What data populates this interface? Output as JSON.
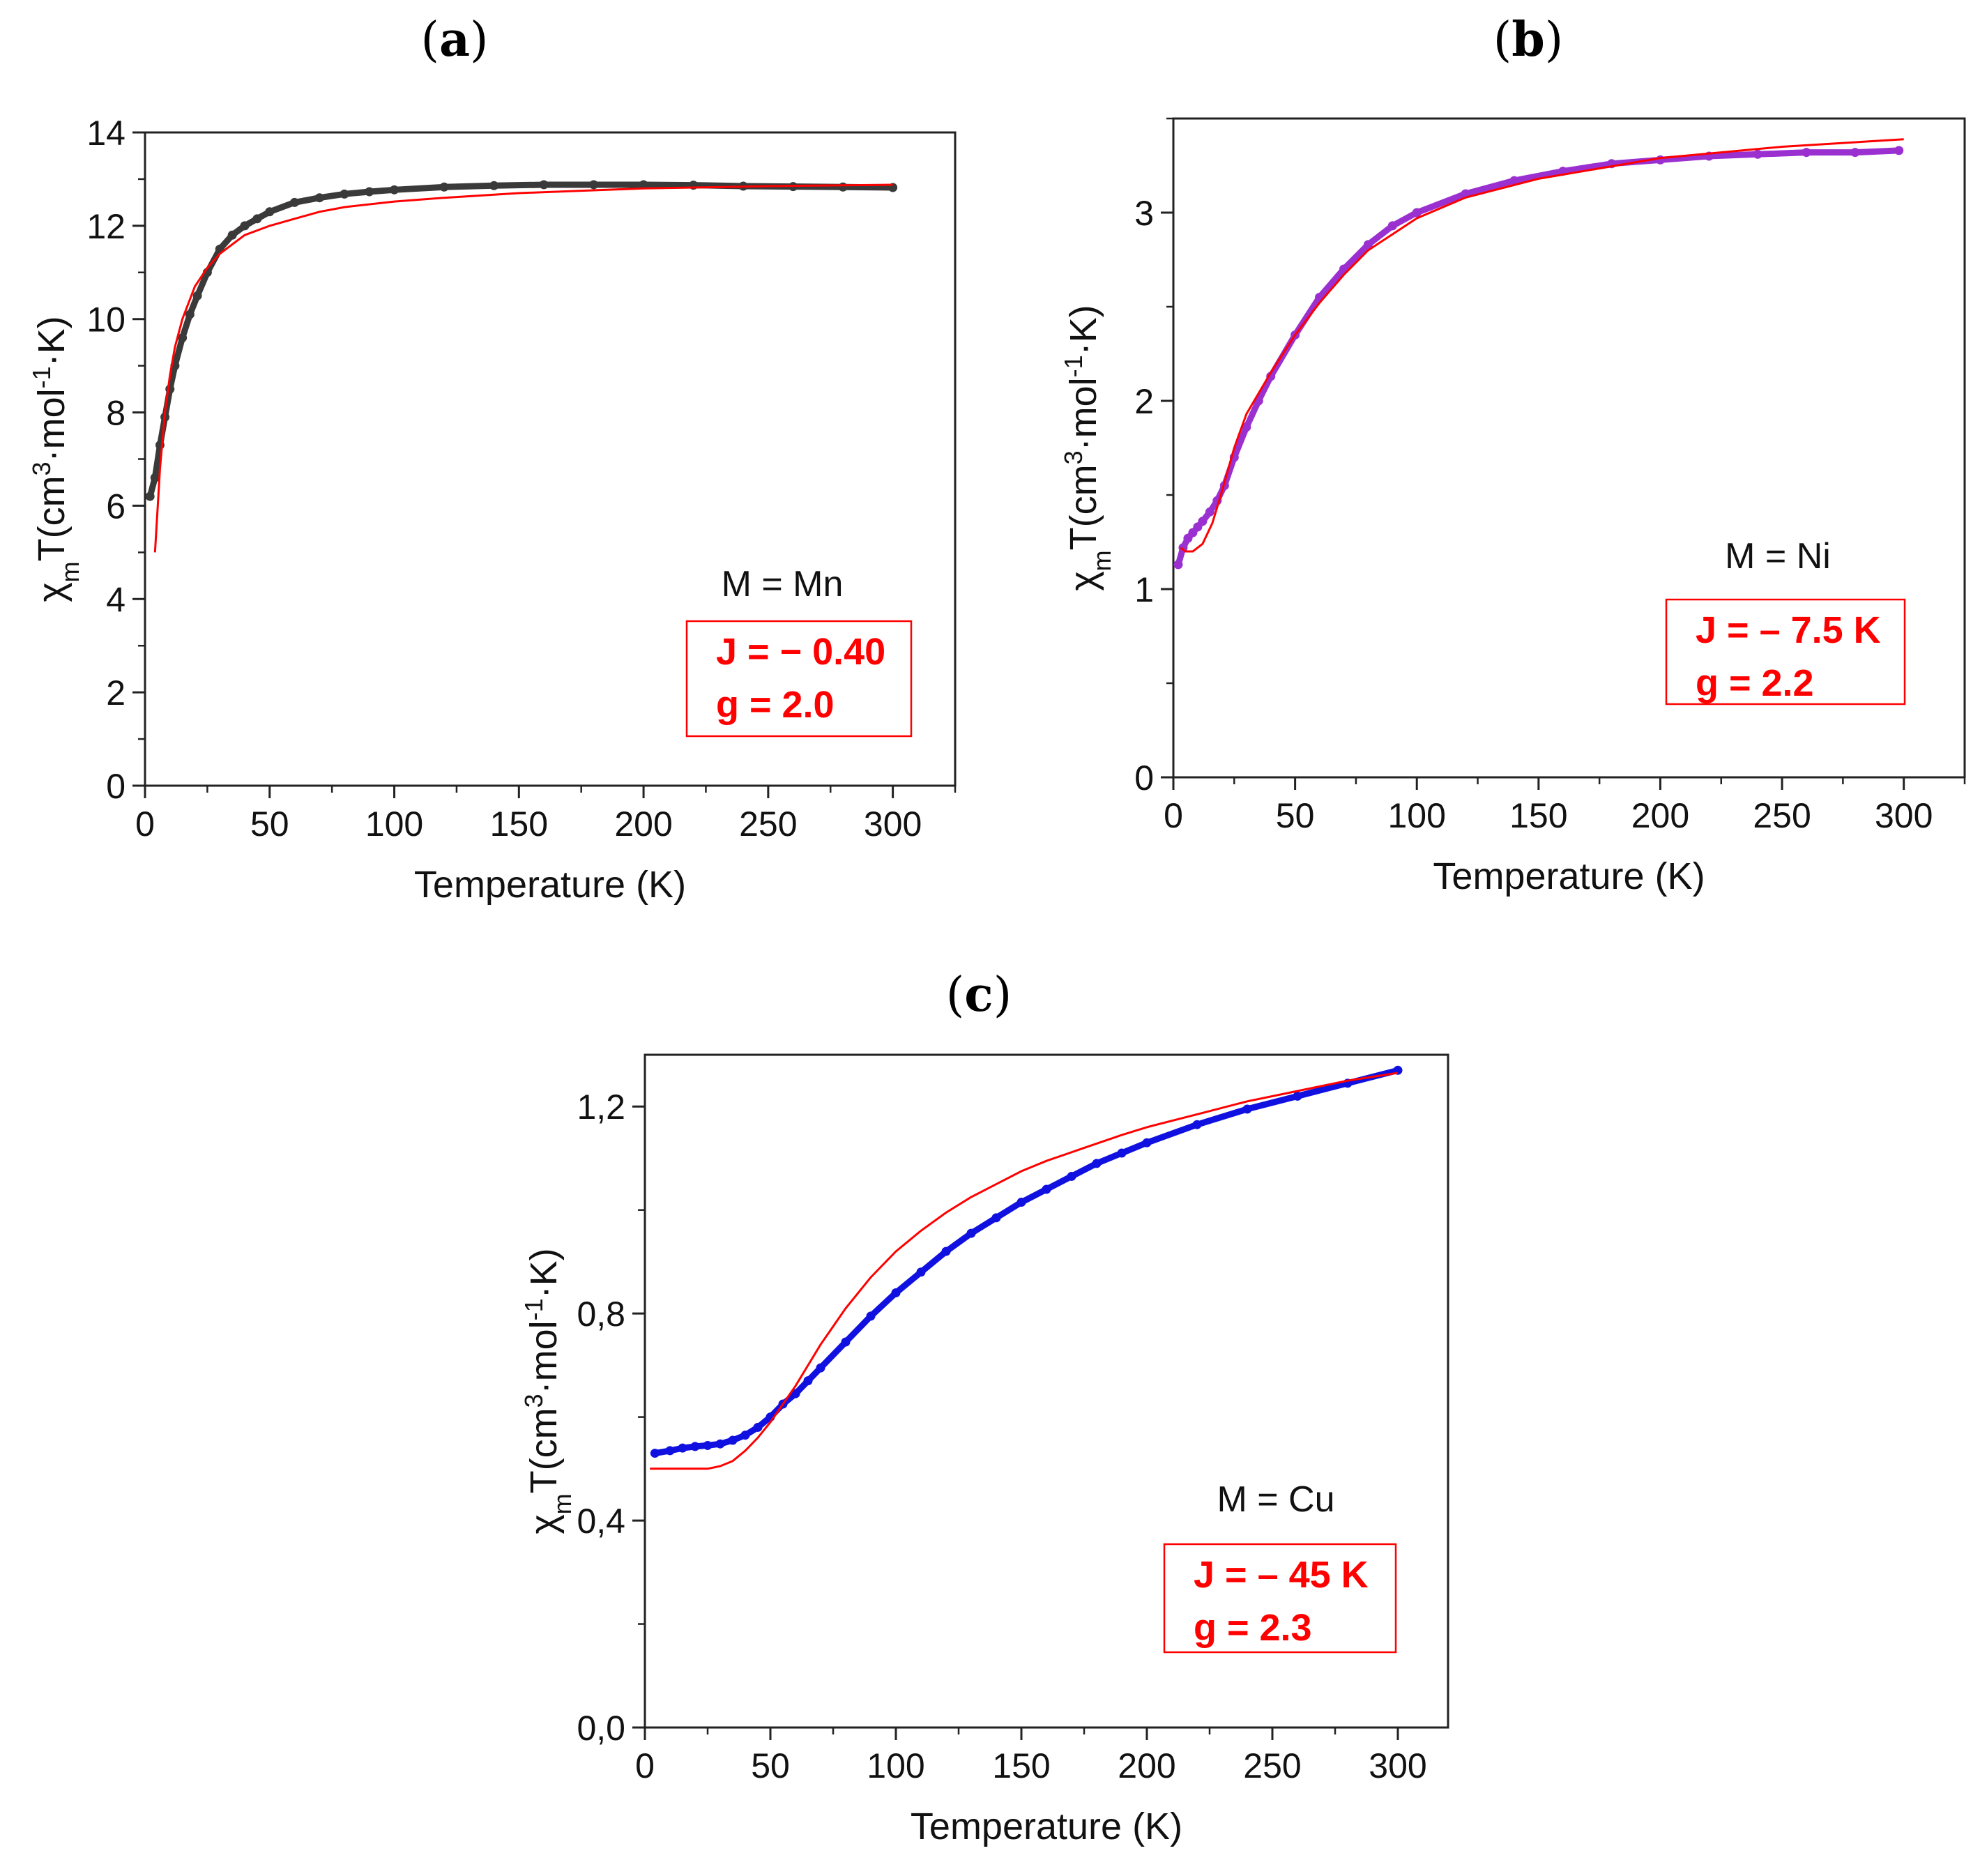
{
  "chart_data": [
    {
      "panel": "(a)",
      "panel_letter": "a",
      "type": "scatter",
      "title": "(a)",
      "xlabel": "Temperature (K)",
      "ylabel": "χmT(cm3·mol-1·K)",
      "ylabel_parts": {
        "chi": "χ",
        "chi_sub": "m",
        "t": "T(cm",
        "sup1": "3",
        "mid": "·mol",
        "sup2": "-1",
        "end": "·K)"
      },
      "xlim": [
        0,
        325
      ],
      "ylim": [
        0,
        14
      ],
      "xticks": [
        0,
        50,
        100,
        150,
        200,
        250,
        300
      ],
      "xtick_labels": [
        "0",
        "50",
        "100",
        "150",
        "200",
        "250",
        "300"
      ],
      "yticks": [
        0,
        2,
        4,
        6,
        8,
        10,
        12,
        14
      ],
      "ytick_labels": [
        "0",
        "2",
        "4",
        "6",
        "8",
        "10",
        "12",
        "14"
      ],
      "metal_label": "M = Mn",
      "fit_params": [
        "J = − 0.40",
        "g = 2.0"
      ],
      "colors": {
        "data": "#3a3a3a",
        "fit": "#ff0000"
      },
      "series": [
        {
          "name": "experimental",
          "style": "points",
          "x": [
            2,
            4,
            6,
            8,
            10,
            12,
            15,
            18,
            21,
            25,
            30,
            35,
            40,
            45,
            50,
            60,
            70,
            80,
            90,
            100,
            120,
            140,
            160,
            180,
            200,
            220,
            240,
            260,
            280,
            300
          ],
          "y": [
            6.2,
            6.6,
            7.3,
            7.9,
            8.5,
            9.0,
            9.6,
            10.1,
            10.5,
            11.0,
            11.5,
            11.8,
            12.0,
            12.15,
            12.3,
            12.5,
            12.6,
            12.68,
            12.73,
            12.77,
            12.83,
            12.86,
            12.88,
            12.88,
            12.88,
            12.87,
            12.85,
            12.84,
            12.83,
            12.82
          ]
        },
        {
          "name": "fit",
          "style": "line",
          "x": [
            4,
            6,
            8,
            10,
            12,
            15,
            20,
            25,
            30,
            35,
            40,
            50,
            60,
            70,
            80,
            100,
            120,
            150,
            200,
            250,
            300
          ],
          "y": [
            5.0,
            6.8,
            8.0,
            8.8,
            9.4,
            10.0,
            10.7,
            11.1,
            11.4,
            11.6,
            11.8,
            12.0,
            12.15,
            12.3,
            12.4,
            12.52,
            12.6,
            12.7,
            12.8,
            12.85,
            12.88
          ]
        }
      ]
    },
    {
      "panel": "(b)",
      "panel_letter": "b",
      "type": "scatter",
      "title": "(b)",
      "xlabel": "Temperature (K)",
      "ylabel": "χmT(cm3·mol-1·K)",
      "ylabel_parts": {
        "chi": "χ",
        "chi_sub": "m",
        "t": "T(cm",
        "sup1": "3",
        "mid": "·mol",
        "sup2": "-1",
        "end": "·K)"
      },
      "xlim": [
        0,
        325
      ],
      "ylim": [
        0,
        3.5
      ],
      "xticks": [
        0,
        50,
        100,
        150,
        200,
        250,
        300
      ],
      "xtick_labels": [
        "0",
        "50",
        "100",
        "150",
        "200",
        "250",
        "300"
      ],
      "yticks": [
        0,
        1,
        2,
        3
      ],
      "ytick_labels": [
        "0",
        "1",
        "2",
        "3"
      ],
      "metal_label": "M = Ni",
      "fit_params": [
        "J = – 7.5 K",
        "g = 2.2"
      ],
      "colors": {
        "data": "#9b30d0",
        "fit": "#ff0000"
      },
      "series": [
        {
          "name": "experimental",
          "style": "points",
          "x": [
            2,
            4,
            6,
            8,
            10,
            12,
            15,
            18,
            21,
            25,
            30,
            35,
            40,
            50,
            60,
            70,
            80,
            90,
            100,
            120,
            140,
            160,
            180,
            200,
            220,
            240,
            260,
            280,
            298
          ],
          "y": [
            1.13,
            1.22,
            1.27,
            1.3,
            1.33,
            1.36,
            1.41,
            1.47,
            1.55,
            1.7,
            1.86,
            2.0,
            2.13,
            2.35,
            2.55,
            2.7,
            2.83,
            2.93,
            3.0,
            3.1,
            3.17,
            3.22,
            3.26,
            3.28,
            3.3,
            3.31,
            3.32,
            3.32,
            3.33
          ]
        },
        {
          "name": "fit",
          "style": "line",
          "x": [
            3,
            5,
            8,
            12,
            16,
            20,
            25,
            30,
            40,
            50,
            60,
            70,
            80,
            100,
            120,
            150,
            200,
            250,
            300
          ],
          "y": [
            1.22,
            1.2,
            1.2,
            1.24,
            1.35,
            1.52,
            1.75,
            1.93,
            2.15,
            2.35,
            2.52,
            2.67,
            2.8,
            2.97,
            3.08,
            3.18,
            3.29,
            3.35,
            3.39
          ]
        }
      ]
    },
    {
      "panel": "(c)",
      "panel_letter": "c",
      "type": "scatter",
      "title": "(c)",
      "xlabel": "Temperature (K)",
      "ylabel": "χmT(cm3·mol-1·K)",
      "ylabel_parts": {
        "chi": "χ",
        "chi_sub": "m",
        "t": "T(cm",
        "sup1": "3",
        "mid": "·mol",
        "sup2": "-1",
        "end": "·K)"
      },
      "xlim": [
        0,
        320
      ],
      "ylim": [
        0,
        1.3
      ],
      "xticks": [
        0,
        50,
        100,
        150,
        200,
        250,
        300
      ],
      "xtick_labels": [
        "0",
        "50",
        "100",
        "150",
        "200",
        "250",
        "300"
      ],
      "yticks": [
        0,
        0.4,
        0.8,
        1.2
      ],
      "ytick_labels": [
        "0,0",
        "0,4",
        "0,8",
        "1,2"
      ],
      "metal_label": "M = Cu",
      "fit_params": [
        "J = – 45 K",
        "g = 2.3"
      ],
      "colors": {
        "data": "#1010e0",
        "fit": "#ff0000"
      },
      "series": [
        {
          "name": "experimental",
          "style": "points",
          "x": [
            4,
            10,
            15,
            20,
            25,
            30,
            35,
            40,
            45,
            50,
            55,
            60,
            65,
            70,
            80,
            90,
            100,
            110,
            120,
            130,
            140,
            150,
            160,
            170,
            180,
            190,
            200,
            220,
            240,
            260,
            280,
            300
          ],
          "y": [
            0.53,
            0.535,
            0.54,
            0.543,
            0.545,
            0.548,
            0.555,
            0.565,
            0.58,
            0.6,
            0.625,
            0.645,
            0.67,
            0.695,
            0.745,
            0.795,
            0.84,
            0.88,
            0.92,
            0.955,
            0.985,
            1.015,
            1.04,
            1.065,
            1.09,
            1.11,
            1.13,
            1.165,
            1.195,
            1.22,
            1.245,
            1.27
          ]
        },
        {
          "name": "fit",
          "style": "line",
          "x": [
            2,
            10,
            20,
            25,
            30,
            35,
            40,
            45,
            50,
            55,
            60,
            65,
            70,
            80,
            90,
            100,
            110,
            120,
            130,
            140,
            150,
            160,
            175,
            190,
            200,
            220,
            240,
            260,
            280,
            300
          ],
          "y": [
            0.5,
            0.5,
            0.5,
            0.5,
            0.505,
            0.515,
            0.535,
            0.56,
            0.59,
            0.625,
            0.66,
            0.7,
            0.74,
            0.81,
            0.87,
            0.92,
            0.96,
            0.995,
            1.025,
            1.05,
            1.075,
            1.095,
            1.12,
            1.145,
            1.16,
            1.185,
            1.21,
            1.23,
            1.25,
            1.265
          ]
        }
      ]
    }
  ]
}
